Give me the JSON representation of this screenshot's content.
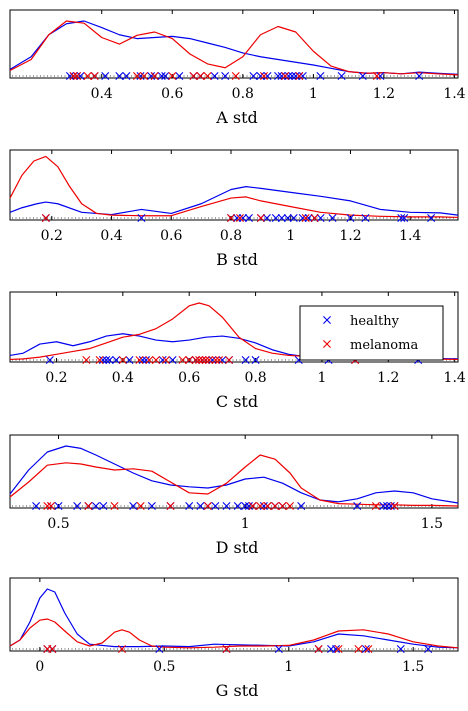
{
  "colors": {
    "healthy": "#0000ee",
    "melanoma": "#ee0000"
  },
  "legend": {
    "entries": [
      {
        "label": "healthy",
        "color": "#0000ee",
        "marker": "x"
      },
      {
        "label": "melanoma",
        "color": "#ee0000",
        "marker": "x"
      }
    ],
    "panel": 2,
    "placement": "top-right"
  },
  "chart_data": [
    {
      "type": "line",
      "xlabel": "A std",
      "xlim": [
        0.14,
        1.41
      ],
      "xticks": [
        0.4,
        0.6,
        0.8,
        1,
        1.2,
        1.4
      ],
      "xtick_labels": [
        "0.4",
        "0.6",
        "0.8",
        "1",
        "1.2",
        "1.4"
      ],
      "series": [
        {
          "name": "healthy",
          "color": "#0000ee",
          "density_x": [
            0.14,
            0.2,
            0.25,
            0.3,
            0.35,
            0.4,
            0.45,
            0.5,
            0.55,
            0.6,
            0.65,
            0.7,
            0.75,
            0.8,
            0.85,
            0.9,
            0.95,
            1.0,
            1.05,
            1.1,
            1.15,
            1.2,
            1.25,
            1.3,
            1.35,
            1.41
          ],
          "density": [
            0.12,
            0.35,
            0.75,
            0.95,
            1.0,
            0.88,
            0.75,
            0.68,
            0.7,
            0.72,
            0.68,
            0.6,
            0.52,
            0.42,
            0.35,
            0.3,
            0.25,
            0.2,
            0.14,
            0.08,
            0.05,
            0.06,
            0.04,
            0.07,
            0.05,
            0.03
          ],
          "samples": [
            0.31,
            0.32,
            0.33,
            0.34,
            0.38,
            0.41,
            0.45,
            0.47,
            0.51,
            0.54,
            0.55,
            0.57,
            0.58,
            0.62,
            0.66,
            0.68,
            0.72,
            0.75,
            0.83,
            0.85,
            0.87,
            0.9,
            0.91,
            0.92,
            0.93,
            0.94,
            0.95,
            0.96,
            0.97,
            1.02,
            1.08,
            1.14,
            1.19,
            1.3
          ]
        },
        {
          "name": "melanoma",
          "color": "#ee0000",
          "density_x": [
            0.14,
            0.2,
            0.25,
            0.3,
            0.35,
            0.4,
            0.45,
            0.5,
            0.55,
            0.6,
            0.65,
            0.7,
            0.75,
            0.8,
            0.85,
            0.9,
            0.95,
            1.0,
            1.05,
            1.1,
            1.15,
            1.2,
            1.25,
            1.3,
            1.35,
            1.41
          ],
          "density": [
            0.1,
            0.3,
            0.75,
            1.0,
            0.96,
            0.7,
            0.58,
            0.74,
            0.8,
            0.68,
            0.4,
            0.22,
            0.15,
            0.35,
            0.75,
            0.9,
            0.8,
            0.45,
            0.18,
            0.08,
            0.05,
            0.06,
            0.04,
            0.06,
            0.04,
            0.02
          ],
          "samples": [
            0.32,
            0.33,
            0.36,
            0.38,
            0.5,
            0.52,
            0.55,
            0.6,
            0.66,
            0.68,
            0.7,
            0.78,
            0.86,
            0.92,
            0.96,
            1.18
          ]
        }
      ]
    },
    {
      "type": "line",
      "xlabel": "B std",
      "xlim": [
        0.06,
        1.56
      ],
      "xticks": [
        0.2,
        0.4,
        0.6,
        0.8,
        1,
        1.2,
        1.4
      ],
      "xtick_labels": [
        "0.2",
        "0.4",
        "0.6",
        "0.8",
        "1",
        "1.2",
        "1.4"
      ],
      "series": [
        {
          "name": "healthy",
          "color": "#0000ee",
          "density_x": [
            0.06,
            0.1,
            0.15,
            0.18,
            0.22,
            0.3,
            0.4,
            0.5,
            0.6,
            0.7,
            0.8,
            0.85,
            0.9,
            1.0,
            1.1,
            1.2,
            1.3,
            1.4,
            1.5,
            1.56
          ],
          "density": [
            0.1,
            0.18,
            0.25,
            0.28,
            0.25,
            0.1,
            0.06,
            0.15,
            0.08,
            0.25,
            0.5,
            0.55,
            0.52,
            0.45,
            0.38,
            0.3,
            0.15,
            0.1,
            0.09,
            0.05
          ],
          "samples": [
            0.18,
            0.5,
            0.8,
            0.82,
            0.84,
            0.86,
            0.9,
            0.92,
            0.95,
            0.97,
            0.99,
            1.01,
            1.04,
            1.06,
            1.08,
            1.1,
            1.14,
            1.2,
            1.25,
            1.37,
            1.38,
            1.47
          ]
        },
        {
          "name": "melanoma",
          "color": "#ee0000",
          "density_x": [
            0.06,
            0.1,
            0.14,
            0.18,
            0.22,
            0.26,
            0.3,
            0.35,
            0.4,
            0.5,
            0.6,
            0.7,
            0.8,
            0.85,
            0.9,
            1.0,
            1.1,
            1.2,
            1.3,
            1.4,
            1.5,
            1.56
          ],
          "density": [
            0.35,
            0.75,
            1.0,
            1.08,
            0.9,
            0.55,
            0.25,
            0.08,
            0.05,
            0.04,
            0.04,
            0.2,
            0.35,
            0.37,
            0.3,
            0.2,
            0.1,
            0.05,
            0.03,
            0.02,
            0.02,
            0.01
          ],
          "samples": [
            0.18,
            0.8,
            0.83,
            0.9,
            1.05,
            1.08
          ]
        }
      ]
    },
    {
      "type": "line",
      "xlabel": "C std",
      "xlim": [
        0.06,
        1.41
      ],
      "xticks": [
        0.2,
        0.4,
        0.6,
        0.8,
        1,
        1.2,
        1.4
      ],
      "xtick_labels": [
        "0.2",
        "0.4",
        "0.6",
        "0.8",
        "1",
        "1.2",
        "1.4"
      ],
      "series": [
        {
          "name": "healthy",
          "color": "#0000ee",
          "density_x": [
            0.06,
            0.1,
            0.15,
            0.2,
            0.25,
            0.3,
            0.35,
            0.4,
            0.45,
            0.5,
            0.55,
            0.6,
            0.65,
            0.7,
            0.75,
            0.8,
            0.85,
            0.9,
            0.95,
            1.0,
            1.1,
            1.2,
            1.3,
            1.41
          ],
          "density": [
            0.08,
            0.12,
            0.28,
            0.32,
            0.25,
            0.32,
            0.42,
            0.46,
            0.42,
            0.35,
            0.32,
            0.35,
            0.4,
            0.42,
            0.38,
            0.3,
            0.18,
            0.1,
            0.06,
            0.05,
            0.04,
            0.03,
            0.03,
            0.02
          ],
          "samples": [
            0.18,
            0.34,
            0.35,
            0.36,
            0.38,
            0.42,
            0.46,
            0.47,
            0.52,
            0.55,
            0.6,
            0.62,
            0.64,
            0.65,
            0.67,
            0.7,
            0.72,
            0.77,
            0.8,
            0.93,
            1.02,
            1.1,
            1.29
          ]
        },
        {
          "name": "melanoma",
          "color": "#ee0000",
          "density_x": [
            0.06,
            0.1,
            0.15,
            0.2,
            0.25,
            0.3,
            0.35,
            0.4,
            0.45,
            0.5,
            0.55,
            0.6,
            0.63,
            0.66,
            0.7,
            0.75,
            0.8,
            0.85,
            0.9,
            1.0,
            1.1,
            1.2,
            1.3,
            1.41
          ],
          "density": [
            0.01,
            0.02,
            0.05,
            0.1,
            0.15,
            0.2,
            0.3,
            0.4,
            0.45,
            0.55,
            0.72,
            0.95,
            1.0,
            0.95,
            0.75,
            0.4,
            0.2,
            0.12,
            0.08,
            0.05,
            0.04,
            0.03,
            0.02,
            0.01
          ],
          "samples": [
            0.29,
            0.33,
            0.4,
            0.45,
            0.48,
            0.5,
            0.53,
            0.58,
            0.6,
            0.62,
            0.63,
            0.64,
            0.65,
            0.66,
            0.68,
            0.69,
            0.72,
            1.1
          ]
        }
      ]
    },
    {
      "type": "line",
      "xlabel": "D std",
      "xlim": [
        0.37,
        1.57
      ],
      "xticks": [
        0.5,
        1,
        1.5
      ],
      "xtick_labels": [
        "0.5",
        "1",
        "1.5"
      ],
      "series": [
        {
          "name": "healthy",
          "color": "#0000ee",
          "density_x": [
            0.37,
            0.42,
            0.47,
            0.52,
            0.56,
            0.6,
            0.65,
            0.7,
            0.75,
            0.8,
            0.85,
            0.9,
            0.95,
            1.0,
            1.05,
            1.1,
            1.15,
            1.2,
            1.25,
            1.3,
            1.35,
            1.4,
            1.45,
            1.5,
            1.57
          ],
          "density": [
            0.2,
            0.6,
            0.9,
            1.0,
            0.96,
            0.85,
            0.7,
            0.55,
            0.42,
            0.35,
            0.32,
            0.3,
            0.35,
            0.45,
            0.48,
            0.38,
            0.22,
            0.1,
            0.07,
            0.12,
            0.22,
            0.25,
            0.22,
            0.12,
            0.05
          ],
          "samples": [
            0.44,
            0.48,
            0.5,
            0.55,
            0.58,
            0.6,
            0.62,
            0.7,
            0.75,
            0.8,
            0.85,
            0.88,
            0.9,
            0.92,
            0.95,
            0.98,
            1.0,
            1.01,
            1.02,
            1.05,
            1.06,
            1.08,
            1.1,
            1.15,
            1.3,
            1.37,
            1.38,
            1.39,
            1.4
          ]
        },
        {
          "name": "melanoma",
          "color": "#ee0000",
          "density_x": [
            0.37,
            0.42,
            0.47,
            0.52,
            0.56,
            0.6,
            0.65,
            0.7,
            0.75,
            0.8,
            0.85,
            0.9,
            0.95,
            1.0,
            1.04,
            1.08,
            1.12,
            1.15,
            1.2,
            1.25,
            1.3,
            1.35,
            1.4,
            1.45,
            1.5,
            1.57
          ],
          "density": [
            0.15,
            0.4,
            0.68,
            0.72,
            0.7,
            0.65,
            0.6,
            0.62,
            0.58,
            0.4,
            0.22,
            0.2,
            0.38,
            0.65,
            0.85,
            0.78,
            0.55,
            0.3,
            0.1,
            0.04,
            0.03,
            0.02,
            0.02,
            0.01,
            0.01,
            0.0
          ],
          "samples": [
            0.47,
            0.48,
            0.58,
            0.65,
            0.72,
            0.8,
            0.9,
            1.02,
            1.04,
            1.06,
            1.08,
            1.1,
            1.12,
            1.35,
            1.4
          ]
        }
      ]
    },
    {
      "type": "line",
      "xlabel": "G std",
      "xlim": [
        -0.12,
        1.68
      ],
      "xticks": [
        0,
        0.5,
        1,
        1.5
      ],
      "xtick_labels": [
        "0",
        "0.5",
        "1",
        "1.5"
      ],
      "series": [
        {
          "name": "healthy",
          "color": "#0000ee",
          "density_x": [
            -0.12,
            -0.08,
            -0.04,
            0.0,
            0.03,
            0.06,
            0.1,
            0.15,
            0.2,
            0.3,
            0.4,
            0.5,
            0.6,
            0.7,
            0.8,
            0.9,
            1.0,
            1.1,
            1.2,
            1.3,
            1.4,
            1.5,
            1.6,
            1.68
          ],
          "density": [
            0.05,
            0.15,
            0.45,
            0.85,
            1.0,
            0.95,
            0.6,
            0.25,
            0.08,
            0.04,
            0.04,
            0.05,
            0.04,
            0.08,
            0.07,
            0.06,
            0.05,
            0.12,
            0.25,
            0.22,
            0.15,
            0.08,
            0.03,
            0.02
          ],
          "samples": [
            0.03,
            0.05,
            0.48,
            0.75,
            0.96,
            1.12,
            1.17,
            1.19,
            1.31,
            1.45,
            1.56
          ]
        },
        {
          "name": "melanoma",
          "color": "#ee0000",
          "density_x": [
            -0.12,
            -0.08,
            -0.04,
            0.0,
            0.03,
            0.06,
            0.1,
            0.15,
            0.2,
            0.25,
            0.3,
            0.33,
            0.36,
            0.4,
            0.45,
            0.5,
            0.6,
            0.7,
            0.8,
            0.9,
            1.0,
            1.1,
            1.2,
            1.3,
            1.4,
            1.5,
            1.6,
            1.68
          ],
          "density": [
            0.05,
            0.15,
            0.35,
            0.48,
            0.5,
            0.45,
            0.3,
            0.12,
            0.05,
            0.1,
            0.28,
            0.32,
            0.28,
            0.15,
            0.05,
            0.03,
            0.02,
            0.03,
            0.05,
            0.05,
            0.06,
            0.15,
            0.3,
            0.32,
            0.25,
            0.12,
            0.05,
            0.02
          ],
          "samples": [
            0.03,
            0.05,
            0.33,
            0.75,
            1.12,
            1.2,
            1.28,
            1.32
          ]
        }
      ]
    }
  ]
}
